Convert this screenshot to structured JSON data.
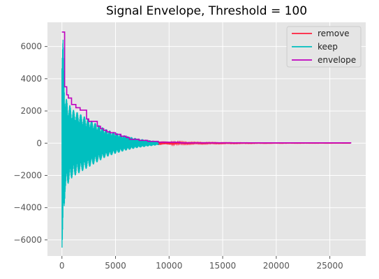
{
  "chart_data": {
    "type": "line",
    "title": "Signal Envelope, Threshold = 100",
    "xlabel": "",
    "ylabel": "",
    "xlim": [
      -1350,
      28350
    ],
    "ylim": [
      -7000,
      7500
    ],
    "x_ticks": [
      0,
      5000,
      10000,
      15000,
      20000,
      25000
    ],
    "x_tick_labels": [
      "0",
      "5000",
      "10000",
      "15000",
      "20000",
      "25000"
    ],
    "y_ticks": [
      -6000,
      -4000,
      -2000,
      0,
      2000,
      4000,
      6000
    ],
    "y_tick_labels": [
      "−6000",
      "−4000",
      "−2000",
      "0",
      "2000",
      "4000",
      "6000"
    ],
    "grid": true,
    "legend_position": "top-right",
    "background_color": "#e5e5e5",
    "series": [
      {
        "name": "remove",
        "color": "#ff1f3d",
        "x": [
          9000,
          12000,
          15000,
          18000,
          21000,
          24000,
          27000
        ],
        "y": [
          0,
          0,
          0,
          0,
          0,
          0,
          0
        ],
        "amplitude": [
          120,
          60,
          40,
          25,
          15,
          10,
          5
        ]
      },
      {
        "name": "keep",
        "color": "#00bfbf",
        "x": [
          0,
          100,
          200,
          300,
          400,
          500,
          700,
          1000,
          1500,
          2000,
          2500,
          3000,
          3500,
          4000,
          5000,
          6000,
          7000,
          8000,
          9000
        ],
        "y": [
          0,
          0,
          0,
          0,
          0,
          0,
          0,
          0,
          0,
          0,
          0,
          0,
          0,
          0,
          0,
          0,
          0,
          0,
          0
        ],
        "amplitude": [
          6800,
          6500,
          4500,
          3000,
          2800,
          2600,
          2400,
          2100,
          1900,
          1700,
          1500,
          1300,
          1100,
          900,
          650,
          450,
          300,
          200,
          120
        ]
      },
      {
        "name": "envelope",
        "color": "#bf00bf",
        "x": [
          0,
          250,
          250,
          450,
          450,
          600,
          600,
          900,
          900,
          1300,
          1300,
          1700,
          1700,
          2300,
          2300,
          2500,
          2500,
          3300,
          3300,
          3600,
          3600,
          3900,
          3900,
          4200,
          4200,
          4500,
          4500,
          5000,
          5000,
          5500,
          5500,
          6000,
          6000,
          6300,
          6300,
          7200,
          7200,
          8000,
          8000,
          9000,
          9000,
          11000,
          11000,
          27000
        ],
        "y": [
          6900,
          6900,
          3500,
          3500,
          3000,
          3000,
          2800,
          2800,
          2400,
          2400,
          2200,
          2200,
          2050,
          2050,
          1500,
          1500,
          1350,
          1350,
          1050,
          1050,
          900,
          900,
          800,
          800,
          700,
          700,
          650,
          650,
          550,
          550,
          430,
          430,
          350,
          350,
          240,
          240,
          170,
          170,
          110,
          110,
          60,
          60,
          20,
          20
        ]
      }
    ]
  }
}
